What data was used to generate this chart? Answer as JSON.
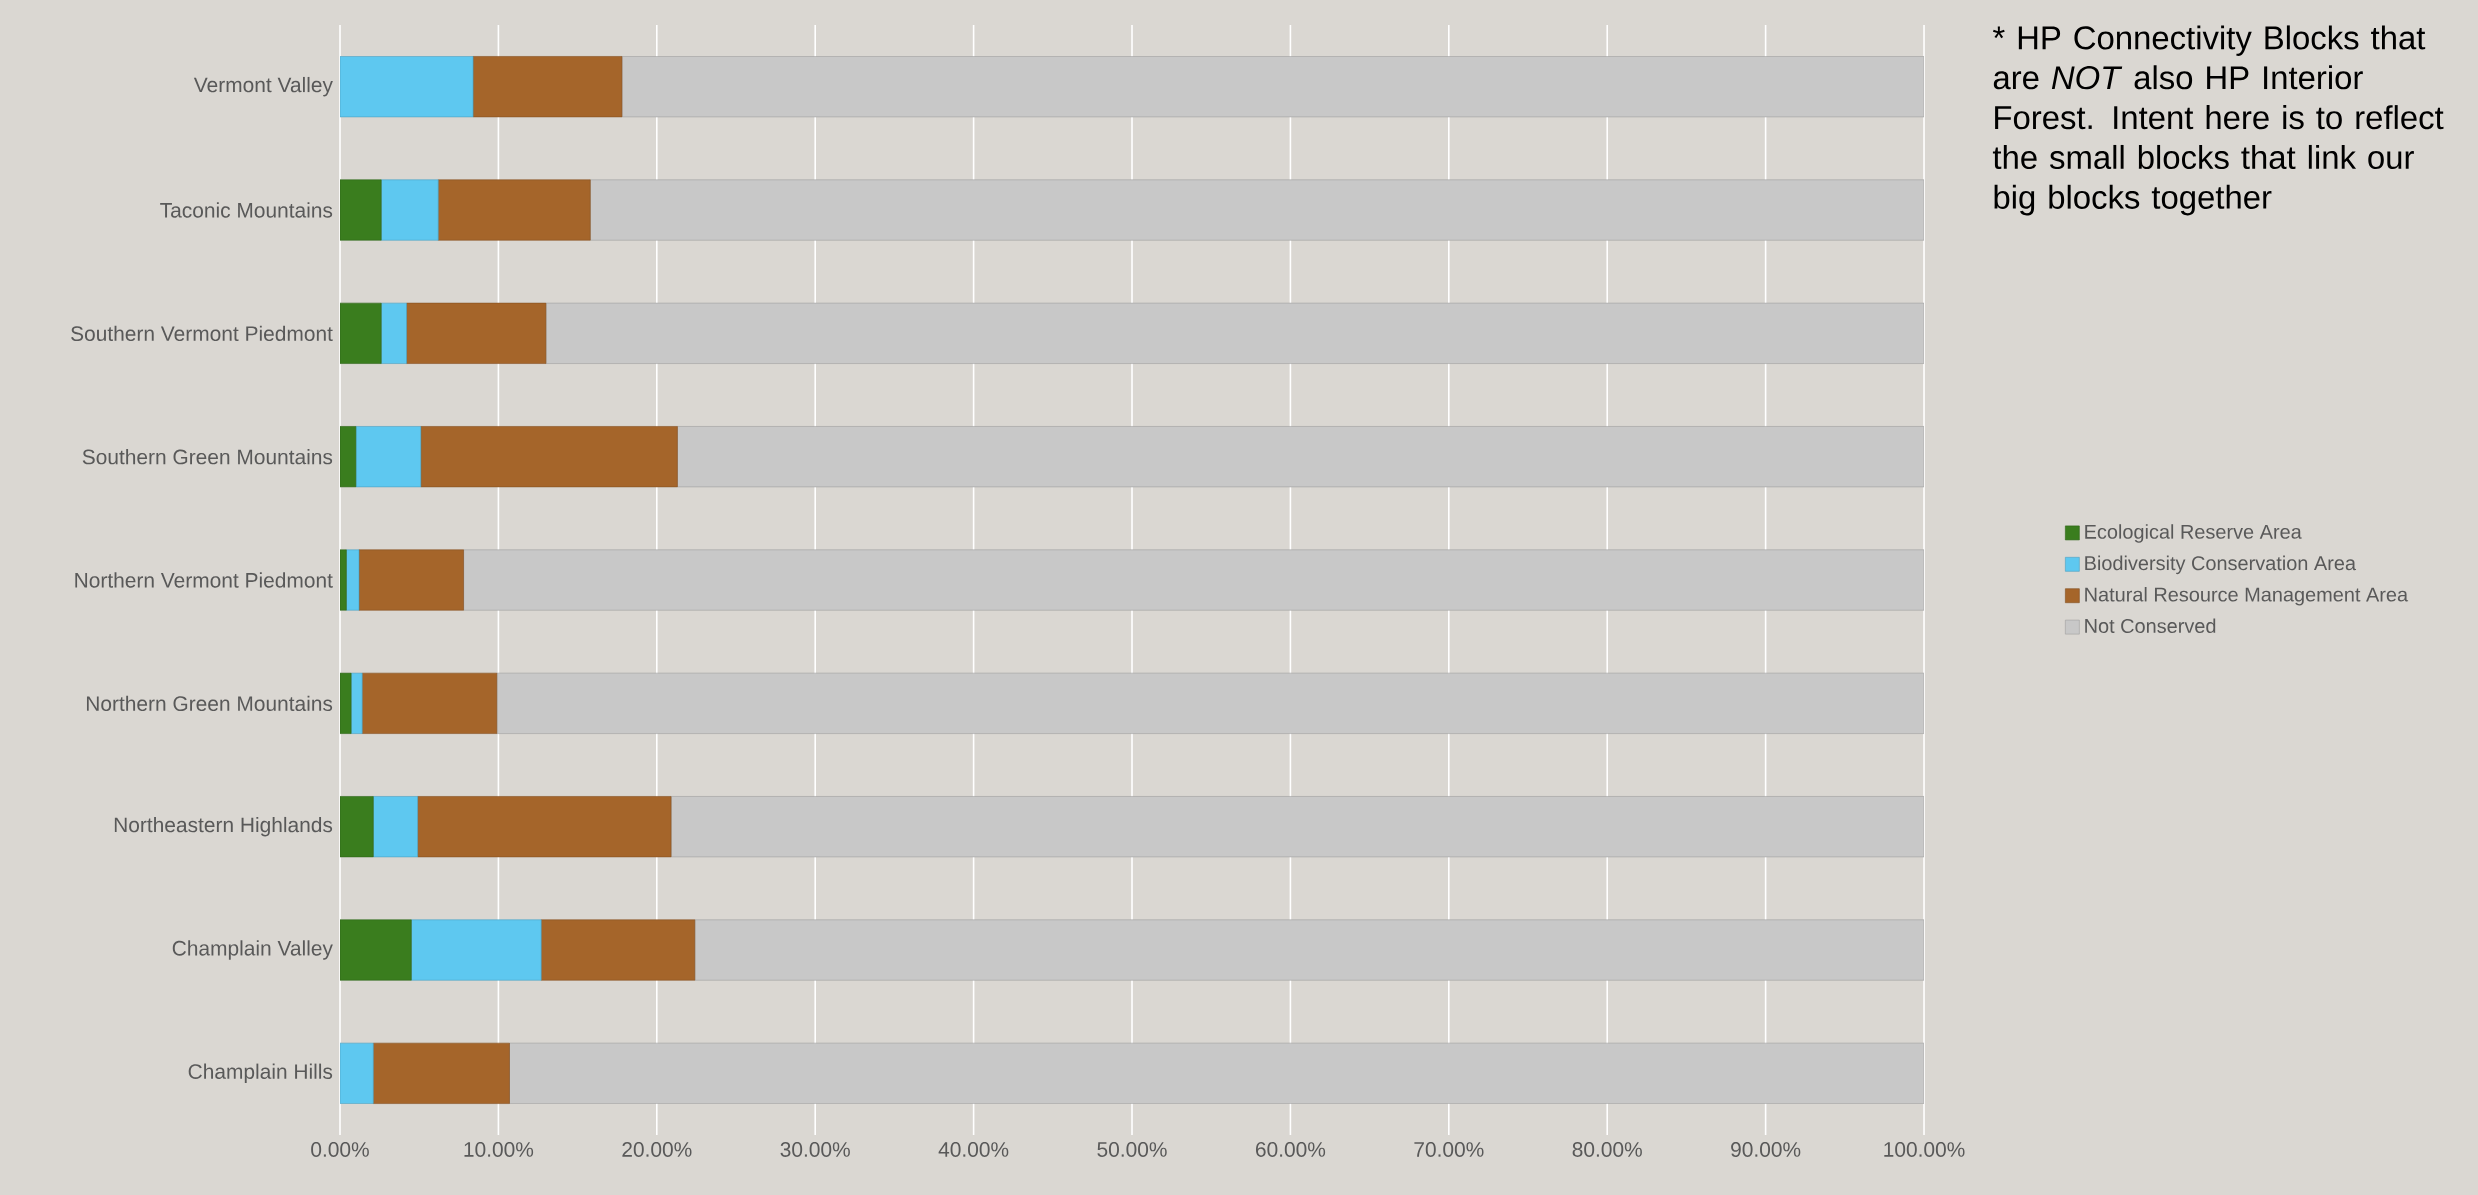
{
  "chart_data": {
    "type": "bar",
    "orientation": "horizontal",
    "stacked": true,
    "categories": [
      "Vermont Valley",
      "Taconic Mountains",
      "Southern Vermont Piedmont",
      "Southern Green Mountains",
      "Northern Vermont Piedmont",
      "Northern Green Mountains",
      "Northeastern Highlands",
      "Champlain Valley",
      "Champlain Hills"
    ],
    "series": [
      {
        "name": "Ecological Reserve Area",
        "color": "#3a7d1e",
        "values": [
          0,
          2.6,
          2.6,
          1.0,
          0.4,
          0.7,
          2.1,
          4.5,
          0
        ]
      },
      {
        "name": "Biodiversity Conservation Area",
        "color": "#5ec8f0",
        "values": [
          8.4,
          3.6,
          1.6,
          4.1,
          0.8,
          0.7,
          2.8,
          8.2,
          2.1
        ]
      },
      {
        "name": "Natural Resource Management Area",
        "color": "#a5652a",
        "values": [
          9.4,
          9.6,
          8.8,
          16.2,
          6.6,
          8.5,
          16.0,
          9.7,
          8.6
        ]
      },
      {
        "name": "Not Conserved",
        "color": "#c8c8c8",
        "values": [
          82.2,
          84.2,
          87.0,
          78.7,
          92.2,
          90.1,
          79.1,
          77.6,
          89.3
        ]
      }
    ],
    "xlim": [
      0,
      100
    ],
    "xticks": [
      {
        "value": 0,
        "label": "0.00%"
      },
      {
        "value": 10,
        "label": "10.00%"
      },
      {
        "value": 20,
        "label": "20.00%"
      },
      {
        "value": 30,
        "label": "30.00%"
      },
      {
        "value": 40,
        "label": "40.00%"
      },
      {
        "value": 50,
        "label": "50.00%"
      },
      {
        "value": 60,
        "label": "60.00%"
      },
      {
        "value": 70,
        "label": "70.00%"
      },
      {
        "value": 80,
        "label": "80.00%"
      },
      {
        "value": 90,
        "label": "90.00%"
      },
      {
        "value": 100,
        "label": "100.00%"
      }
    ],
    "grid": "x",
    "legend": "right",
    "annotations": [
      "* HP Connectivity Blocks that are *NOT* also HP Interior Forest. Intent here is to reflect the small blocks that link our big blocks together"
    ]
  }
}
